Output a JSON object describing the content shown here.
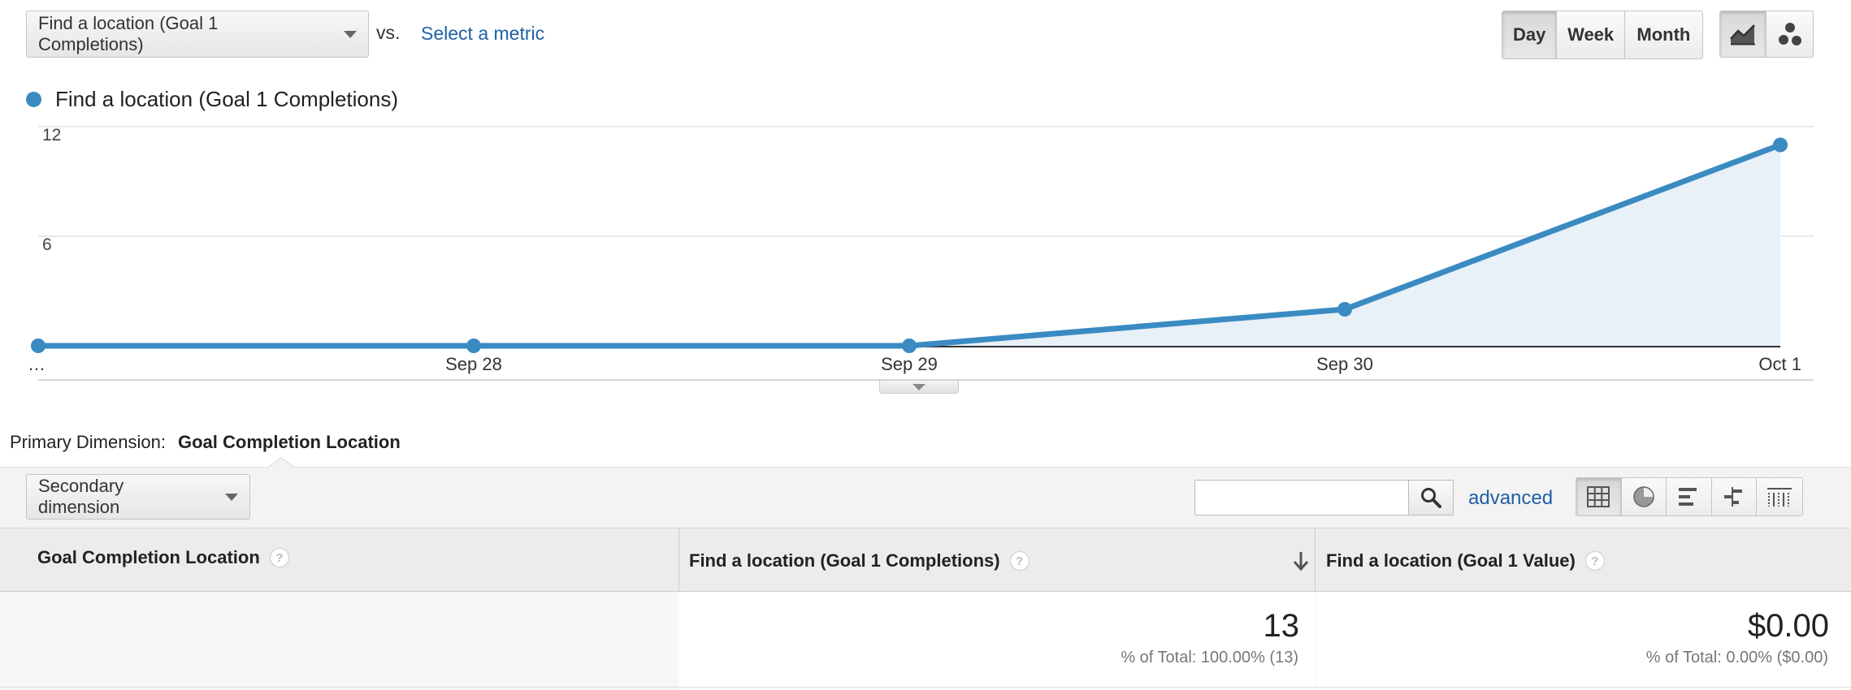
{
  "metric_selector": {
    "selected": "Find a location (Goal 1 Completions)",
    "vs_label": "vs.",
    "select_metric_link": "Select a metric"
  },
  "period_buttons": {
    "day": "Day",
    "week": "Week",
    "month": "Month",
    "active": "day"
  },
  "chart_type_buttons": {
    "line": "line-chart-icon",
    "motion": "motion-chart-icon"
  },
  "colors": {
    "series": "#3a8bc2",
    "area": "#e8f0f8",
    "link": "#1f5fa8"
  },
  "chart_data": {
    "type": "area",
    "categories": [
      "…",
      "Sep 28",
      "Sep 29",
      "Sep 30",
      "Oct 1"
    ],
    "series": [
      {
        "name": "Find a location (Goal 1 Completions)",
        "values": [
          0,
          0,
          0,
          2,
          11
        ]
      }
    ],
    "yticks": [
      "12",
      "6"
    ],
    "ylim": [
      0,
      12
    ],
    "legend": "top-left",
    "grid": true
  },
  "primary_dimension": {
    "label": "Primary Dimension:",
    "value": "Goal Completion Location"
  },
  "toolbar": {
    "secondary_dimension": "Secondary dimension",
    "search_value": "",
    "advanced_link": "advanced"
  },
  "view_icons": [
    "table-view-icon",
    "pie-view-icon",
    "performance-view-icon",
    "comparison-view-icon",
    "pivot-view-icon"
  ],
  "table": {
    "columns": [
      {
        "label": "Goal Completion Location"
      },
      {
        "label": "Find a location (Goal 1 Completions)"
      },
      {
        "label": "Find a location (Goal 1 Value)"
      }
    ],
    "totals": {
      "completions": "13",
      "completions_pct": "% of Total: 100.00% (13)",
      "value": "$0.00",
      "value_pct": "% of Total: 0.00% ($0.00)"
    }
  }
}
